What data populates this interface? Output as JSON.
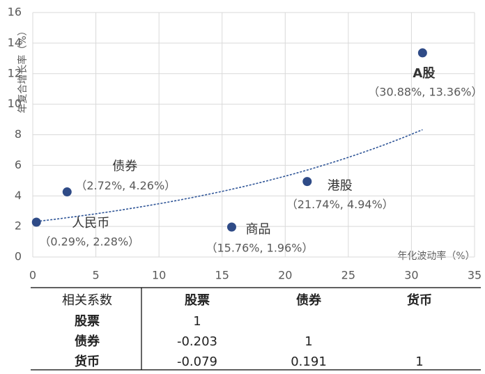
{
  "chart_data": {
    "type": "scatter",
    "y_label": "年复合增长率（%）",
    "x_label": "年化波动率（%）",
    "names": [
      "人民币",
      "债券",
      "商品",
      "港股",
      "A股"
    ],
    "x": [
      0.29,
      2.72,
      15.76,
      21.74,
      30.88
    ],
    "values": [
      2.28,
      4.26,
      1.96,
      4.94,
      13.36
    ],
    "point_labels": [
      "（0.29%, 2.28%）",
      "（2.72%, 4.26%）",
      "（15.76%, 1.96%）",
      "（21.74%, 4.94%）",
      "（30.88%, 13.36%）"
    ],
    "color": "#2f4b87",
    "trendline": "exponential",
    "trendline_color": "#2f5597",
    "xlim": [
      0,
      35
    ],
    "xticks": [
      0,
      5,
      10,
      15,
      20,
      25,
      30,
      35
    ],
    "ylim": [
      0,
      16
    ],
    "yticks": [
      0,
      2,
      4,
      6,
      8,
      10,
      12,
      14,
      16
    ],
    "grid": true
  },
  "table": {
    "header": [
      "相关系数",
      "股票",
      "债券",
      "货币"
    ],
    "rows": [
      {
        "label": "股票",
        "values": [
          1
        ]
      },
      {
        "label": "债券",
        "values": [
          -0.203,
          1
        ]
      },
      {
        "label": "货币",
        "values": [
          -0.079,
          0.191,
          1
        ]
      }
    ]
  }
}
